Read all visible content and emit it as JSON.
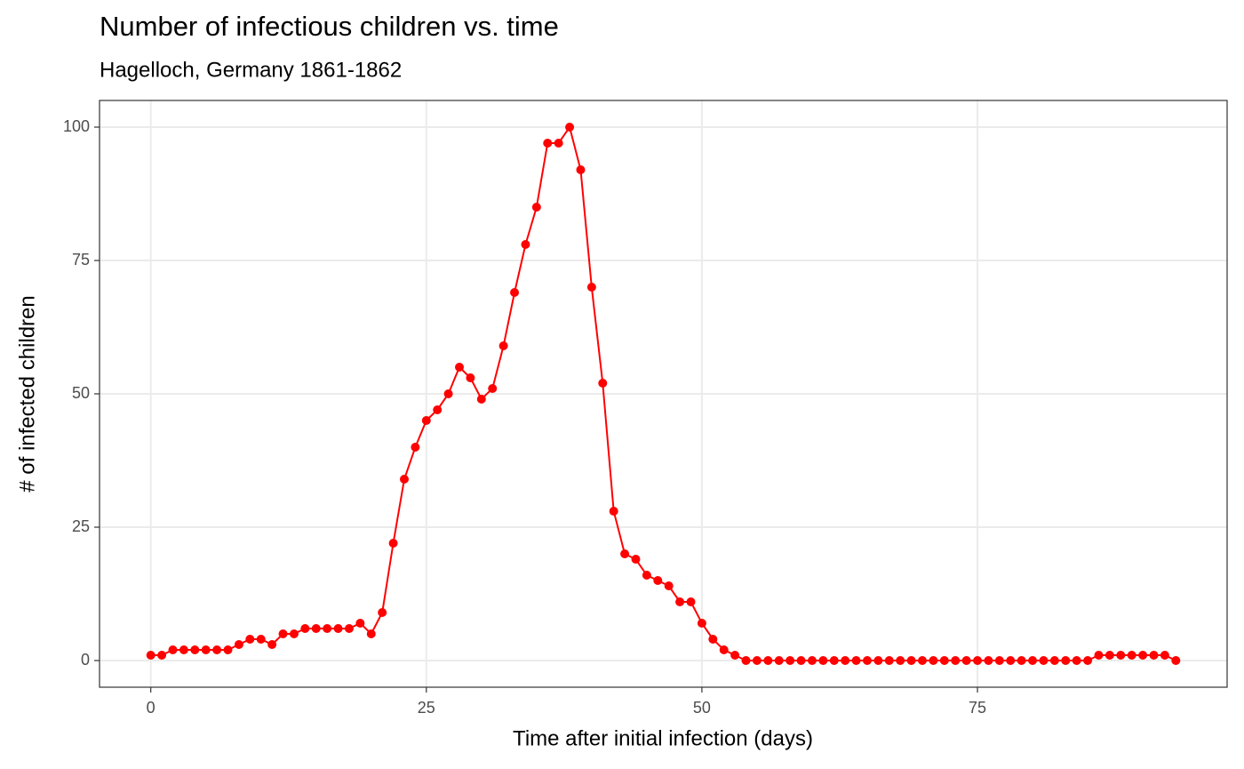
{
  "chart_data": {
    "type": "line",
    "title": "Number of infectious children vs. time",
    "subtitle": "Hagelloch, Germany 1861-1862",
    "x_label": "Time after initial infection (days)",
    "y_label": "# of infected children",
    "x": [
      0,
      1,
      2,
      3,
      4,
      5,
      6,
      7,
      8,
      9,
      10,
      11,
      12,
      13,
      14,
      15,
      16,
      17,
      18,
      19,
      20,
      21,
      22,
      23,
      24,
      25,
      26,
      27,
      28,
      29,
      30,
      31,
      32,
      33,
      34,
      35,
      36,
      37,
      38,
      39,
      40,
      41,
      42,
      43,
      44,
      45,
      46,
      47,
      48,
      49,
      50,
      51,
      52,
      53,
      54,
      55,
      56,
      57,
      58,
      59,
      60,
      61,
      62,
      63,
      64,
      65,
      66,
      67,
      68,
      69,
      70,
      71,
      72,
      73,
      74,
      75,
      76,
      77,
      78,
      79,
      80,
      81,
      82,
      83,
      84,
      85,
      86,
      87,
      88,
      89,
      90,
      91,
      92,
      93
    ],
    "series": [
      {
        "color": "#ff0000",
        "values": [
          1,
          1,
          2,
          2,
          2,
          2,
          2,
          2,
          3,
          4,
          4,
          3,
          5,
          5,
          6,
          6,
          6,
          6,
          6,
          7,
          5,
          9,
          22,
          34,
          40,
          45,
          47,
          50,
          55,
          53,
          49,
          51,
          59,
          69,
          78,
          85,
          97,
          97,
          100,
          92,
          70,
          52,
          28,
          20,
          19,
          16,
          15,
          14,
          11,
          11,
          7,
          4,
          2,
          1,
          0,
          0,
          0,
          0,
          0,
          0,
          0,
          0,
          0,
          0,
          0,
          0,
          0,
          0,
          0,
          0,
          0,
          0,
          0,
          0,
          0,
          0,
          0,
          0,
          0,
          0,
          0,
          0,
          0,
          0,
          0,
          0,
          1,
          1,
          1,
          1,
          1,
          1,
          1,
          0
        ]
      }
    ],
    "xlim": [
      -4.65,
      97.65
    ],
    "ylim": [
      -5,
      105
    ],
    "xticks": [
      0,
      25,
      50,
      75
    ],
    "yticks": [
      0,
      25,
      50,
      75,
      100
    ],
    "grid": true
  }
}
